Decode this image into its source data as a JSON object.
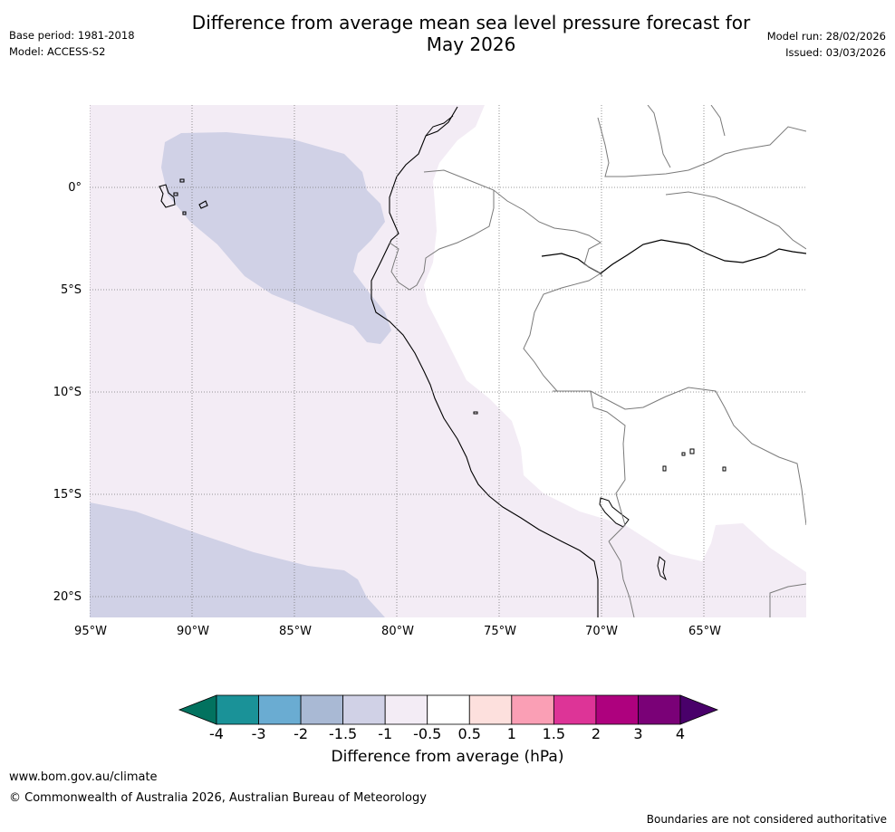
{
  "header": {
    "title_line1": "Difference from average mean sea level pressure forecast for",
    "title_line2": "May 2026",
    "base_period": "Base period: 1981-2018",
    "model": "Model: ACCESS-S2",
    "model_run": "Model run: 28/02/2026",
    "issued": "Issued: 03/03/2026"
  },
  "map": {
    "lon_labels": [
      "95°W",
      "90°W",
      "85°W",
      "80°W",
      "75°W",
      "70°W",
      "65°W"
    ],
    "lat_labels": [
      "0°",
      "5°S",
      "10°S",
      "15°S",
      "20°S"
    ],
    "colors": {
      "ocean_default": "#f3ecf5",
      "negative_1_to_1_5": "#d0d1e6",
      "land_neutral": "#ffffff",
      "coastline": "#000000",
      "border": "#7a7a7a",
      "gridline": "#777777"
    }
  },
  "colorbar": {
    "tick_labels": [
      "-4",
      "-3",
      "-2",
      "-1.5",
      "-1",
      "-0.5",
      "0.5",
      "1",
      "1.5",
      "2",
      "3",
      "4"
    ],
    "colors": [
      "#02725f",
      "#1a9298",
      "#6aacd2",
      "#a9b9d4",
      "#d0d1e6",
      "#f3ecf5",
      "#ffffff",
      "#fde0dd",
      "#fa9fb5",
      "#dd3497",
      "#ae017e",
      "#7a0177",
      "#49006a"
    ],
    "label": "Difference from average (hPa)"
  },
  "footer": {
    "url": "www.bom.gov.au/climate",
    "copyright": "© Commonwealth of Australia 2026, Australian Bureau of Meteorology",
    "note": "Boundaries are not considered authoritative"
  }
}
